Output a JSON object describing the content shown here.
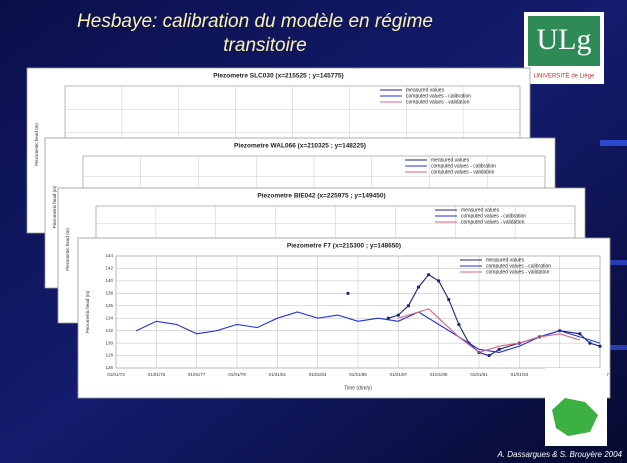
{
  "slide": {
    "title_line1": "Hesbaye: calibration du modèle en régime",
    "title_line2": "transitoire",
    "logo": "ULg",
    "logo_caption": "UNIVERSITÉ de Liège",
    "footer": "A. Dassargues & S. Brouyère 2004"
  },
  "chart_data": [
    {
      "type": "line",
      "title": "Piezometre SLC030 (x=215525 ; y=145775)",
      "ylabel": "Piezometric head (m)",
      "series": [
        {
          "name": "measured values",
          "color": "#1a237e"
        },
        {
          "name": "computed values - calibration",
          "color": "#2233dd"
        },
        {
          "name": "computed values - validation",
          "color": "#e06080"
        }
      ]
    },
    {
      "type": "line",
      "title": "Piezometre WAL066 (x=210325 ; y=148225)",
      "ylabel": "Piezometric head (m)",
      "series": [
        {
          "name": "measured values",
          "color": "#1a237e"
        },
        {
          "name": "computed values - calibration",
          "color": "#2233dd"
        },
        {
          "name": "computed values - validation",
          "color": "#e06080"
        }
      ]
    },
    {
      "type": "line",
      "title": "Piezometre BIE042 (x=225975 ; y=149450)",
      "ylabel": "Piezometric head (m)",
      "series": [
        {
          "name": "measured values",
          "color": "#1a237e"
        },
        {
          "name": "computed values - calibration",
          "color": "#2233dd"
        },
        {
          "name": "computed values - validation",
          "color": "#e06080"
        }
      ]
    },
    {
      "type": "line",
      "title": "Piezometre F7 (x=215300 ; y=148650)",
      "xlabel": "Time (d/m/y)",
      "ylabel": "Piezometric head (m)",
      "xlim": [
        1973,
        1997
      ],
      "xticks": [
        {
          "value": 1973,
          "label": "01/01/73"
        },
        {
          "value": 1975,
          "label": "01/01/75"
        },
        {
          "value": 1977,
          "label": "01/01/77"
        },
        {
          "value": 1979,
          "label": "01/01/79"
        },
        {
          "value": 1981,
          "label": "01/01/81"
        },
        {
          "value": 1983,
          "label": "01/01/83"
        },
        {
          "value": 1985,
          "label": "01/01/85"
        },
        {
          "value": 1987,
          "label": "01/01/87"
        },
        {
          "value": 1989,
          "label": "01/01/89"
        },
        {
          "value": 1991,
          "label": "01/01/91"
        },
        {
          "value": 1993,
          "label": "01/01/93"
        },
        {
          "value": 1995,
          "label": "01/01/95"
        },
        {
          "value": 1997,
          "label": "01/01/97"
        }
      ],
      "ylim": [
        126,
        144
      ],
      "yticks": [
        126,
        128,
        130,
        132,
        134,
        136,
        138,
        140,
        142,
        144
      ],
      "grid": true,
      "series": [
        {
          "name": "measured values",
          "color": "#1a237e",
          "markers": true,
          "x": [
            1984.5,
            1985.5,
            1986.5,
            1987,
            1987.5,
            1988,
            1988.5,
            1989,
            1989.5,
            1990,
            1990.5,
            1991,
            1991.5,
            1992,
            1993,
            1994,
            1995,
            1996,
            1996.5,
            1997
          ],
          "values": [
            138,
            null,
            134,
            134.5,
            136,
            139,
            141,
            140,
            137,
            133,
            130,
            128.5,
            128,
            129,
            130,
            131,
            132,
            131.5,
            130,
            129.5
          ]
        },
        {
          "name": "computed values - calibration",
          "color": "#2233dd",
          "x": [
            1974,
            1975,
            1976,
            1977,
            1978,
            1979,
            1980,
            1981,
            1982,
            1983,
            1984,
            1985,
            1986,
            1987,
            1988,
            1989,
            1990,
            1991,
            1992,
            1993,
            1994,
            1995,
            1996,
            1997
          ],
          "values": [
            132,
            133.5,
            133,
            131.5,
            132,
            133,
            132.5,
            134,
            135,
            134,
            134.5,
            133.5,
            134,
            133.5,
            135,
            133,
            131,
            129,
            128.5,
            129.5,
            131,
            132,
            131,
            130
          ]
        },
        {
          "name": "computed values - validation",
          "color": "#e06080",
          "x": [
            1987,
            1987.5,
            1988,
            1988.5,
            1989,
            1990,
            1991,
            1992,
            1993,
            1994,
            1995,
            1996
          ],
          "values": [
            134,
            134.5,
            135,
            135.5,
            134,
            131,
            128.5,
            129.5,
            130,
            131,
            131.5,
            130.5
          ]
        }
      ]
    }
  ]
}
